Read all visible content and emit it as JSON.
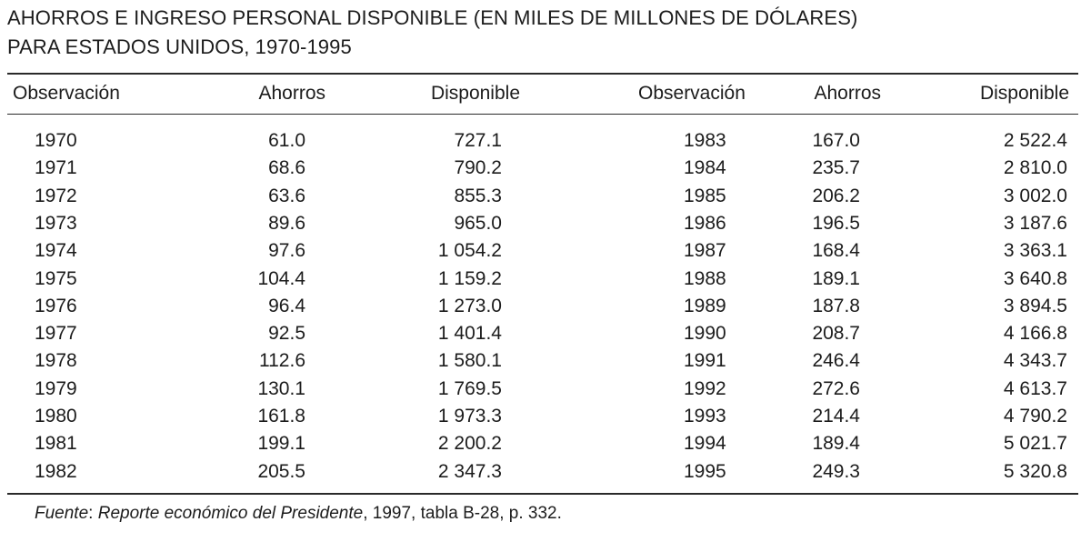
{
  "title": {
    "line1": "AHORROS E INGRESO PERSONAL DISPONIBLE (EN MILES DE MILLONES DE DÓLARES)",
    "line2": "PARA ESTADOS UNIDOS, 1970-1995"
  },
  "columns": [
    "Observación",
    "Ahorros",
    "Disponible",
    "Observación",
    "Ahorros",
    "Disponible"
  ],
  "rows_left": [
    [
      "1970",
      "61.0",
      "727.1"
    ],
    [
      "1971",
      "68.6",
      "790.2"
    ],
    [
      "1972",
      "63.6",
      "855.3"
    ],
    [
      "1973",
      "89.6",
      "965.0"
    ],
    [
      "1974",
      "97.6",
      "1 054.2"
    ],
    [
      "1975",
      "104.4",
      "1 159.2"
    ],
    [
      "1976",
      "96.4",
      "1 273.0"
    ],
    [
      "1977",
      "92.5",
      "1 401.4"
    ],
    [
      "1978",
      "112.6",
      "1 580.1"
    ],
    [
      "1979",
      "130.1",
      "1 769.5"
    ],
    [
      "1980",
      "161.8",
      "1 973.3"
    ],
    [
      "1981",
      "199.1",
      "2 200.2"
    ],
    [
      "1982",
      "205.5",
      "2 347.3"
    ]
  ],
  "rows_right": [
    [
      "1983",
      "167.0",
      "2 522.4"
    ],
    [
      "1984",
      "235.7",
      "2 810.0"
    ],
    [
      "1985",
      "206.2",
      "3 002.0"
    ],
    [
      "1986",
      "196.5",
      "3 187.6"
    ],
    [
      "1987",
      "168.4",
      "3 363.1"
    ],
    [
      "1988",
      "189.1",
      "3 640.8"
    ],
    [
      "1989",
      "187.8",
      "3 894.5"
    ],
    [
      "1990",
      "208.7",
      "4 166.8"
    ],
    [
      "1991",
      "246.4",
      "4 343.7"
    ],
    [
      "1992",
      "272.6",
      "4 613.7"
    ],
    [
      "1993",
      "214.4",
      "4 790.2"
    ],
    [
      "1994",
      "189.4",
      "5 021.7"
    ],
    [
      "1995",
      "249.3",
      "5 320.8"
    ]
  ],
  "source": {
    "label": "Fuente",
    "sep": ": ",
    "publication": "Reporte económico del Presidente",
    "detail": ", 1997, tabla B-28, p. 332."
  }
}
